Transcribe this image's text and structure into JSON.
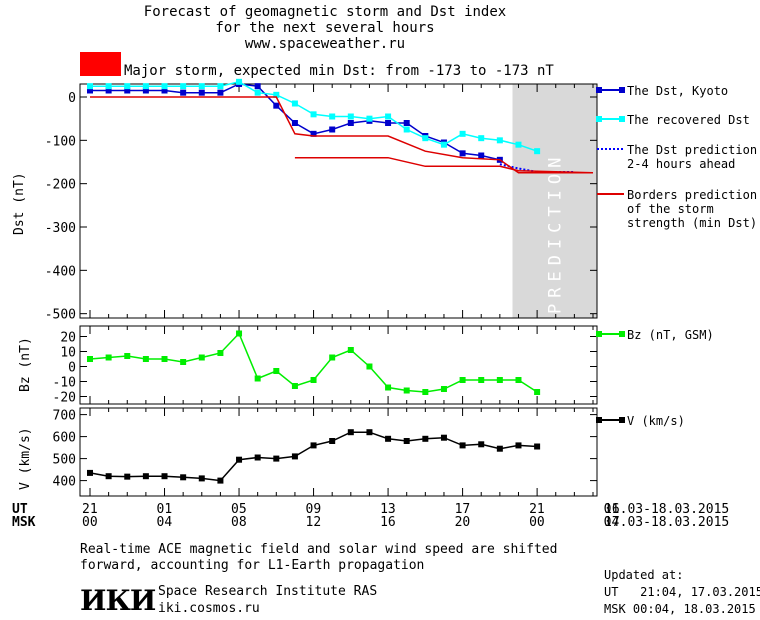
{
  "header": {
    "title_line1": "Forecast of geomagnetic storm and Dst index",
    "title_line2": "for the next several hours",
    "site": "www.spaceweather.ru",
    "storm_text": "Major storm, expected min Dst: from -173 to -173 nT",
    "storm_color": "#ff0000"
  },
  "colors": {
    "dst_kyoto": "#0000cc",
    "dst_recovered": "#00ffff",
    "dst_prediction": "#0000ff",
    "borders": "#dd0000",
    "bz": "#00ee00",
    "v": "#000000",
    "prediction_band": "#d9d9d9"
  },
  "chart_data": [
    {
      "type": "line",
      "panel": "dst",
      "ylabel": "Dst (nT)",
      "ylim": [
        -510,
        30
      ],
      "yticks": [
        0,
        -100,
        -200,
        -300,
        -400,
        -500
      ],
      "xlim": [
        0,
        27
      ],
      "prediction_label": "PREDICTION",
      "prediction_from": 23,
      "series": [
        {
          "name": "The Dst, Kyoto",
          "marker": "square",
          "x": [
            0,
            1,
            2,
            3,
            4,
            5,
            6,
            7,
            8,
            9,
            10,
            11,
            12,
            13,
            14,
            15,
            16,
            17,
            18,
            19,
            20,
            21,
            22
          ],
          "y": [
            15,
            15,
            15,
            15,
            15,
            10,
            10,
            10,
            30,
            25,
            -20,
            -60,
            -85,
            -75,
            -60,
            -55,
            -60,
            -60,
            -90,
            -105,
            -130,
            -135,
            -145
          ]
        },
        {
          "name": "The recovered Dst",
          "marker": "square",
          "x": [
            0,
            1,
            2,
            3,
            4,
            5,
            6,
            7,
            8,
            9,
            10,
            11,
            12,
            13,
            14,
            15,
            16,
            17,
            18,
            19,
            20,
            21,
            22,
            23,
            24
          ],
          "y": [
            25,
            25,
            25,
            25,
            25,
            25,
            25,
            25,
            35,
            10,
            5,
            -15,
            -40,
            -45,
            -45,
            -50,
            -45,
            -75,
            -95,
            -110,
            -85,
            -95,
            -100,
            -110,
            -125
          ]
        },
        {
          "name": "The Dst prediction\n2-4 hours ahead",
          "dashed": true,
          "x": [
            22,
            23,
            24,
            25,
            26
          ],
          "y": [
            -155,
            -165,
            -173,
            -173,
            -173
          ]
        },
        {
          "name": "Borders prediction\nof the storm\nstrength (min Dst)",
          "x": [
            0,
            5,
            10,
            11,
            12,
            16,
            18,
            20,
            22,
            23,
            27
          ],
          "y": [
            0,
            0,
            0,
            -85,
            -90,
            -90,
            -125,
            -140,
            -145,
            -175,
            -175
          ]
        },
        {
          "name": "",
          "x": [
            11,
            16,
            18,
            20,
            22,
            23,
            27
          ],
          "y": [
            -140,
            -140,
            -160,
            -160,
            -160,
            -170,
            -175
          ]
        }
      ]
    },
    {
      "type": "line",
      "panel": "bz",
      "ylabel": "Bz (nT)",
      "ylim": [
        -25,
        27
      ],
      "yticks": [
        20,
        10,
        0,
        -10,
        -20
      ],
      "series": [
        {
          "name": "Bz (nT, GSM)",
          "marker": "square",
          "x": [
            0,
            1,
            2,
            3,
            4,
            5,
            6,
            7,
            8,
            9,
            10,
            11,
            12,
            13,
            14,
            15,
            16,
            17,
            18,
            19,
            20,
            21,
            22,
            23,
            24
          ],
          "y": [
            5,
            6,
            7,
            5,
            5,
            3,
            6,
            9,
            22,
            -8,
            -3,
            -13,
            -9,
            6,
            11,
            0,
            -14,
            -16,
            -17,
            -15,
            -9,
            -9,
            -9,
            -9,
            -17
          ]
        }
      ]
    },
    {
      "type": "line",
      "panel": "v",
      "ylabel": "V (km/s)",
      "ylim": [
        330,
        730
      ],
      "yticks": [
        700,
        600,
        500,
        400
      ],
      "series": [
        {
          "name": "V (km/s)",
          "marker": "square",
          "x": [
            0,
            1,
            2,
            3,
            4,
            5,
            6,
            7,
            8,
            9,
            10,
            11,
            12,
            13,
            14,
            15,
            16,
            17,
            18,
            19,
            20,
            21,
            22,
            23,
            24
          ],
          "y": [
            435,
            420,
            418,
            420,
            420,
            415,
            410,
            400,
            495,
            505,
            500,
            510,
            560,
            580,
            620,
            620,
            590,
            580,
            590,
            595,
            560,
            565,
            545,
            560,
            555
          ]
        }
      ]
    }
  ],
  "xaxis": {
    "ut_label": "UT",
    "msk_label": "MSK",
    "ut_ticks": [
      "21",
      "01",
      "05",
      "09",
      "13",
      "17",
      "21",
      "01"
    ],
    "msk_ticks": [
      "00",
      "04",
      "08",
      "12",
      "16",
      "20",
      "00",
      "04"
    ],
    "ut_range": "16.03-18.03.2015",
    "msk_range": "17.03-18.03.2015"
  },
  "footer": {
    "note_line1": "Real-time ACE magnetic field and solar wind speed are shifted",
    "note_line2": "forward, accounting for L1-Earth propagation",
    "institute": "Space Research Institute RAS",
    "site": "iki.cosmos.ru",
    "logo_text": "ИКИ",
    "updated_label": "Updated at:",
    "updated_ut": "UT   21:04, 17.03.2015",
    "updated_msk": "MSK 00:04, 18.03.2015"
  }
}
